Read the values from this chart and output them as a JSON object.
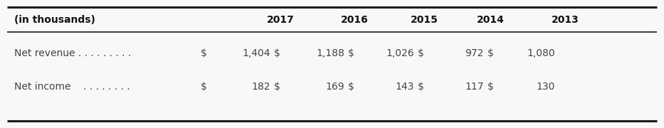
{
  "header_col": "(in thousands)",
  "years": [
    "2017",
    "2016",
    "2015",
    "2014",
    "2013"
  ],
  "rows": [
    {
      "label": "Net revenue . . . . . . . . .",
      "dollar": "$",
      "values": [
        "1,404",
        "1,188",
        "1,026",
        "972",
        "1,080"
      ]
    },
    {
      "label": "Net income    . . . . . . . .",
      "dollar": "$",
      "values": [
        "182",
        "169",
        "143",
        "117",
        "130"
      ]
    }
  ],
  "bg_color": "#f8f8f8",
  "border_color": "#1a1a1a",
  "header_font_size": 10,
  "body_font_size": 10,
  "font_color": "#444444",
  "bold_color": "#111111",
  "fig_width": 9.33,
  "fig_height": 1.8,
  "dpi": 100
}
